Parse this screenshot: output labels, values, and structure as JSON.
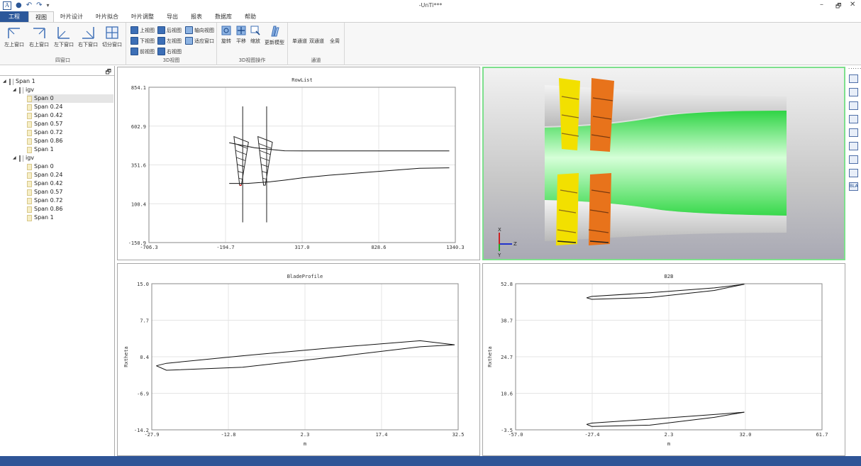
{
  "window": {
    "title": "-UnTi***",
    "logo": "A",
    "qat_icons": [
      "save-icon",
      "undo-icon",
      "redo-icon",
      "customize-icon"
    ],
    "controls": [
      "–",
      "🗗",
      "✕"
    ]
  },
  "tabs": [
    "工程",
    "视图",
    "叶片设计",
    "叶片拟合",
    "叶片调整",
    "导出",
    "报表",
    "数据库",
    "帮助"
  ],
  "active_tab": "视图",
  "ribbon": {
    "four_window": {
      "label": "四窗口",
      "buttons": [
        "左上窗口",
        "右上窗口",
        "左下窗口",
        "右下窗口",
        "切分窗口"
      ]
    },
    "view_3d": {
      "label": "3D视图",
      "buttons": [
        "上视图",
        "后视图",
        "轴向视图",
        "下视图",
        "左视图",
        "适应窗口",
        "前视图",
        "右视图"
      ]
    },
    "op_3d": {
      "label": "3D视图操作",
      "buttons": [
        "旋转",
        "平移",
        "缩放",
        "更新模型"
      ]
    },
    "channel": {
      "label": "通道",
      "buttons": [
        "单通道",
        "双通道",
        "全周"
      ]
    }
  },
  "tree": {
    "root": "Span 1",
    "groups": [
      {
        "name": "igv",
        "items": [
          "Span 0",
          "Span 0.24",
          "Span 0.42",
          "Span 0.57",
          "Span 0.72",
          "Span 0.86",
          "Span 1"
        ]
      },
      {
        "name": "igv",
        "items": [
          "Span 0",
          "Span 0.24",
          "Span 0.42",
          "Span 0.57",
          "Span 0.72",
          "Span 0.86",
          "Span 1"
        ]
      }
    ],
    "selected": "Span 0"
  },
  "right_toolbar": [
    "chart-icon",
    "chart-edit-icon",
    "chart-delete-icon",
    "chart-compare-icon",
    "chart-import-icon",
    "chart-export-icon",
    "list-icon",
    "chart-add-icon",
    "bla-icon"
  ],
  "right_toolbar_text": [
    "BLA"
  ],
  "chart_data": [
    {
      "type": "line",
      "title": "RowList",
      "xlabel": "",
      "ylabel": "",
      "x_ticks": [
        "-706.3",
        "-194.7",
        "317.0",
        "828.6",
        "1340.3"
      ],
      "y_ticks": [
        "854.1",
        "602.9",
        "351.6",
        "100.4",
        "-150.9"
      ],
      "xlim": [
        -706.3,
        1340.3
      ],
      "ylim": [
        -150.9,
        854.1
      ],
      "series": [
        {
          "values": [
            [
              -170,
              495
            ],
            [
              0,
              462
            ],
            [
              200,
              443
            ],
            [
              317,
              442
            ],
            [
              600,
              442
            ],
            [
              1000,
              442
            ],
            [
              1300,
              442
            ]
          ]
        },
        {
          "values": [
            [
              -170,
              232
            ],
            [
              -50,
              232
            ],
            [
              100,
              242
            ],
            [
              200,
              253
            ],
            [
              317,
              268
            ],
            [
              500,
              285
            ],
            [
              700,
              300
            ],
            [
              900,
              315
            ],
            [
              1100,
              330
            ],
            [
              1300,
              333
            ]
          ]
        }
      ],
      "blades": [
        {
          "x": [
            -110,
            -80,
            -70
          ],
          "y_top": 535,
          "y_bottom": 220
        },
        {
          "x": [
            50,
            80,
            90
          ],
          "y_top": 535,
          "y_bottom": 220
        }
      ]
    },
    {
      "type": "line",
      "title": "BladeProfile",
      "xlabel": "m",
      "ylabel": "Rxtheta",
      "x_ticks": [
        "-27.9",
        "-12.8",
        "2.3",
        "17.4",
        "32.5"
      ],
      "y_ticks": [
        "15.0",
        "7.7",
        "0.4",
        "-6.9",
        "-14.2"
      ],
      "xlim": [
        -27.9,
        32.5
      ],
      "ylim": [
        -14.2,
        15.0
      ],
      "series": [
        {
          "values": [
            [
              -27.0,
              -1.4
            ],
            [
              -25.0,
              -0.9
            ],
            [
              -10.0,
              0.6
            ],
            [
              10.0,
              2.4
            ],
            [
              25.0,
              3.6
            ],
            [
              31.8,
              2.8
            ]
          ]
        },
        {
          "values": [
            [
              -27.0,
              -1.4
            ],
            [
              -25.0,
              -2.3
            ],
            [
              -10.0,
              -1.7
            ],
            [
              10.0,
              0.6
            ],
            [
              25.0,
              2.4
            ],
            [
              31.8,
              2.8
            ]
          ]
        }
      ]
    },
    {
      "type": "line",
      "title": "B2B",
      "xlabel": "m",
      "ylabel": "Rxtheta",
      "x_ticks": [
        "-57.0",
        "-27.4",
        "2.3",
        "32.0",
        "61.7"
      ],
      "y_ticks": [
        "52.8",
        "38.7",
        "24.7",
        "10.6",
        "-3.5"
      ],
      "xlim": [
        -57.0,
        61.7
      ],
      "ylim": [
        -3.5,
        52.8
      ],
      "series": [
        {
          "values": [
            [
              -29.5,
              47.4
            ],
            [
              -27.5,
              47.9
            ],
            [
              -5.0,
              49.3
            ],
            [
              20.0,
              51.2
            ],
            [
              31.6,
              52.6
            ]
          ]
        },
        {
          "values": [
            [
              -29.5,
              47.4
            ],
            [
              -27.5,
              46.8
            ],
            [
              -5.0,
              47.5
            ],
            [
              20.0,
              50.2
            ],
            [
              31.6,
              52.6
            ]
          ]
        },
        {
          "values": [
            [
              -29.5,
              -1.4
            ],
            [
              -27.5,
              -0.9
            ],
            [
              -5.0,
              0.6
            ],
            [
              20.0,
              2.4
            ],
            [
              31.6,
              3.3
            ]
          ]
        },
        {
          "values": [
            [
              -29.5,
              -1.4
            ],
            [
              -27.5,
              -2.2
            ],
            [
              -5.0,
              -1.7
            ],
            [
              20.0,
              1.3
            ],
            [
              31.6,
              3.3
            ]
          ]
        }
      ]
    }
  ],
  "view3d": {
    "colors": {
      "hub": "#48e65a",
      "shroud": "#dcdcdc",
      "row1": "#f2e000",
      "row2": "#e8731b"
    },
    "axis_labels": [
      "X",
      "Y",
      "Z"
    ]
  }
}
